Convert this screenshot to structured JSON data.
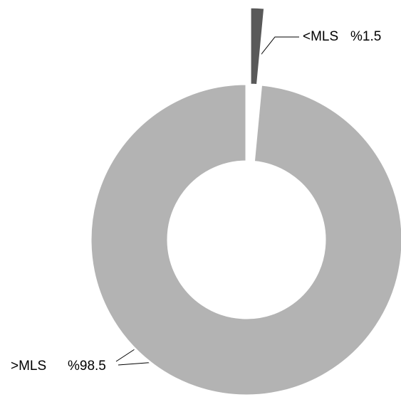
{
  "chart_data": {
    "type": "donut",
    "categories": [
      "<MLS",
      ">MLS"
    ],
    "values": [
      1.5,
      98.5
    ],
    "value_labels": [
      "%1.5",
      "%98.5"
    ],
    "colors": [
      "#595959",
      "#b3b3b3"
    ]
  }
}
